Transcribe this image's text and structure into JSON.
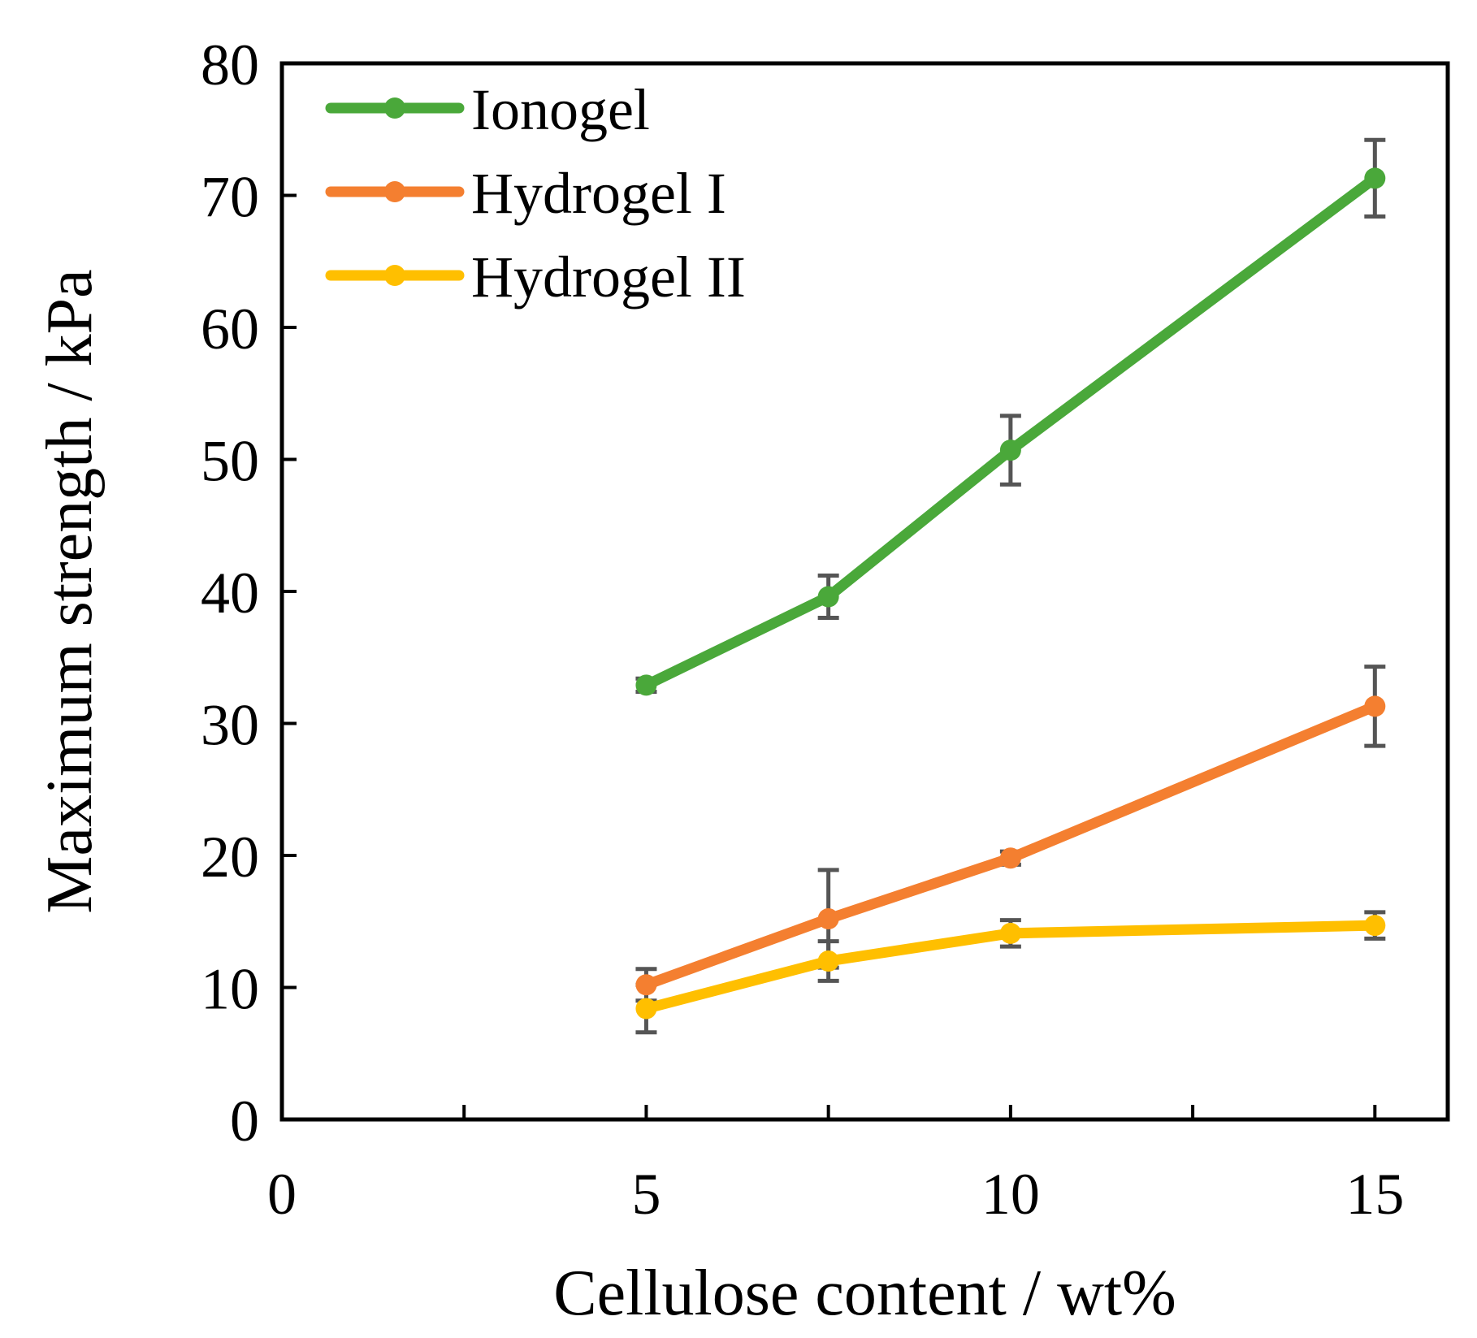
{
  "chart_data": {
    "type": "line",
    "title": "",
    "xlabel": "Cellulose content / wt%",
    "ylabel": "Maximum strength / kPa",
    "xlim": [
      0,
      16
    ],
    "ylim": [
      0,
      80
    ],
    "xticks_major": [
      0,
      5,
      10,
      15
    ],
    "xticks_minor": [
      2.5,
      7.5,
      12.5
    ],
    "yticks": [
      0,
      10,
      20,
      30,
      40,
      50,
      60,
      70,
      80
    ],
    "grid": false,
    "legend_position": "top-left",
    "error_bar_color": "#555555",
    "series": [
      {
        "name": "Ionogel",
        "color": "#4aa83a",
        "x": [
          5,
          7.5,
          10,
          15
        ],
        "y": [
          32.9,
          39.6,
          50.7,
          71.3
        ],
        "error": [
          0.5,
          1.6,
          2.6,
          2.9
        ]
      },
      {
        "name": "Hydrogel I",
        "color": "#f47f30",
        "x": [
          5,
          7.5,
          10,
          15
        ],
        "y": [
          10.2,
          15.2,
          19.8,
          31.3
        ],
        "error": [
          1.2,
          3.7,
          0.5,
          3.0
        ]
      },
      {
        "name": "Hydrogel II",
        "color": "#ffbf00",
        "x": [
          5,
          7.5,
          10,
          15
        ],
        "y": [
          8.4,
          12.0,
          14.1,
          14.7
        ],
        "error": [
          1.8,
          1.5,
          1.0,
          1.0
        ]
      }
    ]
  }
}
